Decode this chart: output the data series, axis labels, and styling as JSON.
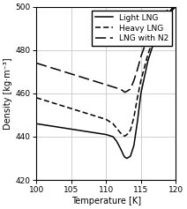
{
  "title": "",
  "xlabel": "Temperature [K]",
  "ylabel": "Density [kg·m⁻³]",
  "xlim": [
    100,
    120
  ],
  "ylim": [
    420,
    500
  ],
  "xticks": [
    100,
    105,
    110,
    115,
    120
  ],
  "yticks": [
    420,
    440,
    460,
    480,
    500
  ],
  "legend": [
    {
      "label": "Light LNG"
    },
    {
      "label": "Heavy LNG"
    },
    {
      "label": "LNG with N2"
    }
  ],
  "light_lng_x": [
    100,
    101,
    102,
    103,
    104,
    105,
    106,
    107,
    108,
    109,
    110,
    110.5,
    111,
    111.5,
    112,
    112.3,
    112.5,
    112.7,
    113,
    113.5,
    114,
    114.5,
    115,
    116,
    117,
    118,
    119,
    120
  ],
  "light_lng_y": [
    446,
    445.5,
    445,
    444.5,
    444,
    443.5,
    443,
    442.5,
    442,
    441.5,
    441,
    440.5,
    440,
    438,
    435,
    433,
    431.5,
    430.5,
    430,
    431,
    436,
    447,
    460,
    475,
    485,
    491,
    497,
    500
  ],
  "heavy_lng_x": [
    100,
    101,
    102,
    103,
    104,
    105,
    106,
    107,
    108,
    109,
    110,
    110.5,
    111,
    111.5,
    112,
    112.3,
    112.5,
    112.7,
    113,
    113.5,
    114,
    114.5,
    115,
    116,
    117,
    118,
    119,
    120
  ],
  "heavy_lng_y": [
    458,
    457,
    456,
    455,
    454,
    453,
    452,
    451,
    450,
    449,
    448,
    447,
    446,
    444,
    442,
    441,
    440.5,
    440.3,
    441,
    443,
    449,
    458,
    466,
    478,
    487,
    493,
    498,
    500
  ],
  "n2_lng_x": [
    100,
    101,
    102,
    103,
    104,
    105,
    106,
    107,
    108,
    109,
    110,
    110.5,
    111,
    111.5,
    112,
    112.3,
    112.5,
    112.7,
    113,
    113.5,
    114,
    114.5,
    115,
    116,
    117,
    118,
    119,
    120
  ],
  "n2_lng_y": [
    474,
    473,
    472,
    471,
    470,
    469,
    468,
    467,
    466,
    465,
    464,
    463.5,
    463,
    462.5,
    462,
    461.5,
    461,
    460.5,
    461,
    462,
    466,
    471,
    477,
    486,
    492,
    496,
    499,
    500
  ],
  "line_color": "#000000",
  "bg_color": "#ffffff",
  "grid_color": "#c8c8c8",
  "font_size": 7,
  "tick_font_size": 6.5
}
